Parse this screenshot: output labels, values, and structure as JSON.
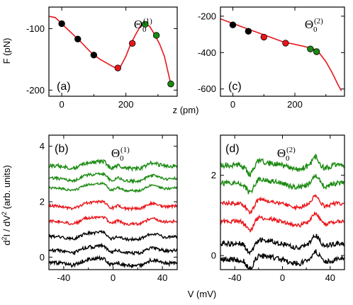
{
  "colors": {
    "black": "#000000",
    "red": "#e8161b",
    "green": "#1b8a12",
    "curve": "#e8161b"
  },
  "xlabel_top": "z (pm)",
  "xlabel_bottom": "V (mV)",
  "ylabel_top": "F (pN)",
  "ylabel_bottom": "d2I / dV2 (arb. units)",
  "chart_data": [
    {
      "id": "a",
      "type": "line",
      "panel_label": "(a)",
      "theta": "Θ",
      "theta_sub": "0",
      "theta_sup": "(1)",
      "xlim": [
        -40,
        360
      ],
      "ylim": [
        -210,
        -65
      ],
      "xticks": [
        0,
        200
      ],
      "xticklabels": [
        "0",
        "200"
      ],
      "yticks": [
        -100,
        -200
      ],
      "yticklabels": [
        "-100",
        "-200"
      ],
      "curve": {
        "x": [
          -40,
          -20,
          0,
          20,
          40,
          60,
          80,
          100,
          120,
          140,
          160,
          175,
          185,
          200,
          215,
          230,
          245,
          260,
          275,
          290,
          305,
          320,
          340
        ],
        "y": [
          -80,
          -82,
          -92,
          -102,
          -112,
          -122,
          -133,
          -143,
          -150,
          -156,
          -162,
          -165,
          -160,
          -145,
          -125,
          -110,
          -96,
          -91,
          -97,
          -110,
          -125,
          -145,
          -190
        ]
      },
      "points": [
        {
          "x": 0,
          "y": -92,
          "color": "black"
        },
        {
          "x": 50,
          "y": -117,
          "color": "black"
        },
        {
          "x": 100,
          "y": -143,
          "color": "black"
        },
        {
          "x": 175,
          "y": -164,
          "color": "red"
        },
        {
          "x": 220,
          "y": -124,
          "color": "red"
        },
        {
          "x": 260,
          "y": -93,
          "color": "green"
        },
        {
          "x": 295,
          "y": -111,
          "color": "green"
        },
        {
          "x": 340,
          "y": -190,
          "color": "green"
        }
      ]
    },
    {
      "id": "c",
      "type": "line",
      "panel_label": "(c)",
      "theta": "Θ",
      "theta_sub": "0",
      "theta_sup": "(2)",
      "xlim": [
        -40,
        360
      ],
      "ylim": [
        -640,
        -150
      ],
      "xticks": [
        0,
        200
      ],
      "xticklabels": [
        "0",
        "200"
      ],
      "yticks": [
        -200,
        -400,
        -600
      ],
      "yticklabels": [
        "-200",
        "-400",
        "-600"
      ],
      "curve": {
        "x": [
          -40,
          0,
          40,
          80,
          120,
          160,
          200,
          240,
          260,
          280,
          300,
          320,
          340,
          350
        ],
        "y": [
          -215,
          -240,
          -265,
          -290,
          -315,
          -340,
          -355,
          -370,
          -380,
          -405,
          -450,
          -510,
          -580,
          -610
        ]
      },
      "points": [
        {
          "x": 0,
          "y": -248,
          "color": "black"
        },
        {
          "x": 50,
          "y": -283,
          "color": "black"
        },
        {
          "x": 100,
          "y": -315,
          "color": "red"
        },
        {
          "x": 170,
          "y": -348,
          "color": "red"
        },
        {
          "x": 250,
          "y": -380,
          "color": "green"
        },
        {
          "x": 270,
          "y": -395,
          "color": "green"
        }
      ]
    },
    {
      "id": "b",
      "type": "line",
      "panel_label": "(b)",
      "theta": "Θ",
      "theta_sub": "0",
      "theta_sup": "(1)",
      "xlim": [
        -52,
        52
      ],
      "ylim": [
        -0.45,
        4.4
      ],
      "xticks": [
        -40,
        0,
        40
      ],
      "xticklabels": [
        "-40",
        "0",
        "40"
      ],
      "yticks": [
        0,
        2,
        4
      ],
      "yticklabels": [
        "0",
        "2",
        "4"
      ],
      "traces": [
        {
          "color": "black",
          "offset": -0.2,
          "noise": 0.07
        },
        {
          "color": "black",
          "offset": 0.25,
          "noise": 0.06
        },
        {
          "color": "black",
          "offset": 0.75,
          "noise": 0.05
        },
        {
          "color": "red",
          "offset": 1.3,
          "noise": 0.05
        },
        {
          "color": "red",
          "offset": 1.85,
          "noise": 0.05
        },
        {
          "color": "green",
          "offset": 2.5,
          "noise": 0.04
        },
        {
          "color": "green",
          "offset": 2.85,
          "noise": 0.05
        },
        {
          "color": "green",
          "offset": 3.3,
          "noise": 0.07
        }
      ]
    },
    {
      "id": "d",
      "type": "line",
      "panel_label": "(d)",
      "theta": "Θ",
      "theta_sub": "0",
      "theta_sup": "(2)",
      "xlim": [
        -52,
        52
      ],
      "ylim": [
        -0.35,
        3.0
      ],
      "xticks": [
        -40,
        0,
        40
      ],
      "xticklabels": [
        "-40",
        "0",
        "40"
      ],
      "yticks": [
        0,
        2
      ],
      "yticklabels": [
        "0",
        "2"
      ],
      "traces": [
        {
          "color": "black",
          "offset": -0.1,
          "noise": 0.07
        },
        {
          "color": "black",
          "offset": 0.3,
          "noise": 0.06
        },
        {
          "color": "red",
          "offset": 0.85,
          "noise": 0.05
        },
        {
          "color": "red",
          "offset": 1.3,
          "noise": 0.05
        },
        {
          "color": "green",
          "offset": 1.8,
          "noise": 0.06
        },
        {
          "color": "green",
          "offset": 2.25,
          "noise": 0.07
        }
      ]
    }
  ]
}
